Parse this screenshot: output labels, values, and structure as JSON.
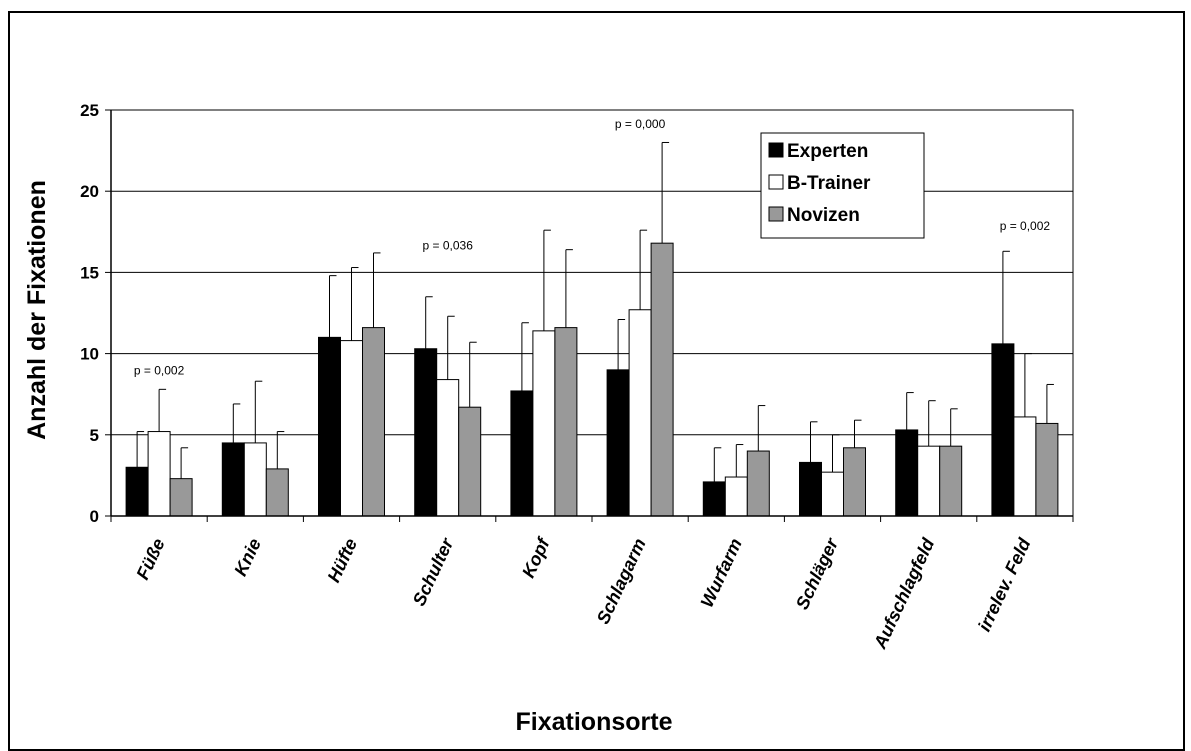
{
  "chart_data": {
    "type": "bar",
    "xlabel": "Fixationsorte",
    "ylabel": "Anzahl der Fixationen",
    "ylim": [
      0,
      25
    ],
    "yticks": [
      0,
      5,
      10,
      15,
      20,
      25
    ],
    "grid": true,
    "legend_position": "top-right",
    "categories": [
      "Füße",
      "Knie",
      "Hüfte",
      "Schulter",
      "Kopf",
      "Schlagarm",
      "Wurfarm",
      "Schläger",
      "Aufschlagfeld",
      "irrelev. Feld"
    ],
    "series": [
      {
        "name": "Experten",
        "color": "#000000",
        "values": [
          3.0,
          4.5,
          11.0,
          10.3,
          7.7,
          9.0,
          2.1,
          3.3,
          5.3,
          10.6
        ],
        "error": [
          2.2,
          2.4,
          3.8,
          3.2,
          4.2,
          3.1,
          2.1,
          2.5,
          2.3,
          5.7
        ]
      },
      {
        "name": "B-Trainer",
        "color": "#ffffff",
        "values": [
          5.2,
          4.5,
          10.8,
          8.4,
          11.4,
          12.7,
          2.4,
          2.7,
          4.3,
          6.1
        ],
        "error": [
          2.6,
          3.8,
          4.5,
          3.9,
          6.2,
          4.9,
          2.0,
          2.3,
          2.8,
          3.9
        ]
      },
      {
        "name": "Novizen",
        "color": "#999999",
        "values": [
          2.3,
          2.9,
          11.6,
          6.7,
          11.6,
          16.8,
          4.0,
          4.2,
          4.3,
          5.7
        ],
        "error": [
          1.9,
          2.3,
          4.6,
          4.0,
          4.8,
          6.2,
          2.8,
          1.7,
          2.3,
          2.4
        ]
      }
    ],
    "annotations": [
      {
        "text": "p = 0,002",
        "category_index": 0,
        "y": 8.7
      },
      {
        "text": "p = 0,036",
        "category_index": 3,
        "y": 16.4
      },
      {
        "text": "p = 0,000",
        "category_index": 5,
        "y": 23.9
      },
      {
        "text": "p = 0,002",
        "category_index": 9,
        "y": 17.6
      }
    ]
  }
}
